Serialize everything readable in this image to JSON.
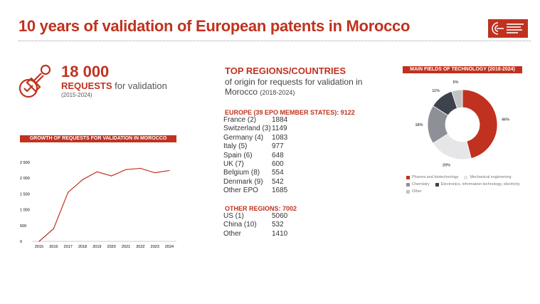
{
  "title": "10 years of validation of European patents in Morocco",
  "logo_text": "European Patent Office",
  "headline": {
    "number": "18 000",
    "label_bold": "REQUESTS",
    "label_rest": " for validation",
    "period": "(2015-2024)",
    "icon": "stamp-check-icon"
  },
  "regions": {
    "title": "TOP REGIONS/COUNTRIES",
    "subtitle": "of origin for requests for validation in Morocco",
    "subtitle_period": "(2018-2024)",
    "europe_heading": "EUROPE (39 EPO MEMBER STATES): 9122",
    "europe": [
      {
        "name": "France (2)",
        "value": "1884"
      },
      {
        "name": "Switzerland (3)",
        "value": "1149"
      },
      {
        "name": "Germany (4)",
        "value": "1083"
      },
      {
        "name": "Italy (5)",
        "value": "977"
      },
      {
        "name": "Spain (6)",
        "value": "648"
      },
      {
        "name": "UK (7)",
        "value": "600"
      },
      {
        "name": "Belgium (8)",
        "value": "554"
      },
      {
        "name": "Denmark (9)",
        "value": "542"
      },
      {
        "name": "Other EPO",
        "value": "1685"
      }
    ],
    "other_heading": "OTHER REGIONS: 7002",
    "other": [
      {
        "name": "US (1)",
        "value": "5060"
      },
      {
        "name": "China (10)",
        "value": "532"
      },
      {
        "name": "Other",
        "value": "1410"
      }
    ]
  },
  "colors": {
    "accent": "#c0321f"
  },
  "chart_data": [
    {
      "type": "line",
      "title": "GROWTH OF REQUESTS FOR VALIDATION IN MOROCCO",
      "x": [
        "2015",
        "2016",
        "2017",
        "2018",
        "2019",
        "2020",
        "2021",
        "2022",
        "2023",
        "2024"
      ],
      "values": [
        0,
        400,
        1550,
        1950,
        2200,
        2070,
        2270,
        2310,
        2170,
        2240
      ],
      "yticks": [
        "0",
        "500",
        "1 000",
        "1 500",
        "2 000",
        "2 500"
      ],
      "ylim": [
        0,
        2500
      ],
      "color": "#c0321f",
      "grid": false
    },
    {
      "type": "pie",
      "title": "MAIN FIELDS OF TECHNOLOGY (2018-2024)",
      "donut": true,
      "slices": [
        {
          "label": "Pharma and biotechnology",
          "value": 46,
          "text": "46%",
          "color": "#c0321f"
        },
        {
          "label": "Mechanical engineering",
          "value": 20,
          "text": "20%",
          "color": "#e6e6e8"
        },
        {
          "label": "Chemistry",
          "value": 18,
          "text": "18%",
          "color": "#8d9096"
        },
        {
          "label": "Electronics, information technology, electricity",
          "value": 11,
          "text": "11%",
          "color": "#3e424c"
        },
        {
          "label": "Other",
          "value": 5,
          "text": "5%",
          "color": "#c2c3c6"
        }
      ],
      "legend": "bottom"
    }
  ]
}
